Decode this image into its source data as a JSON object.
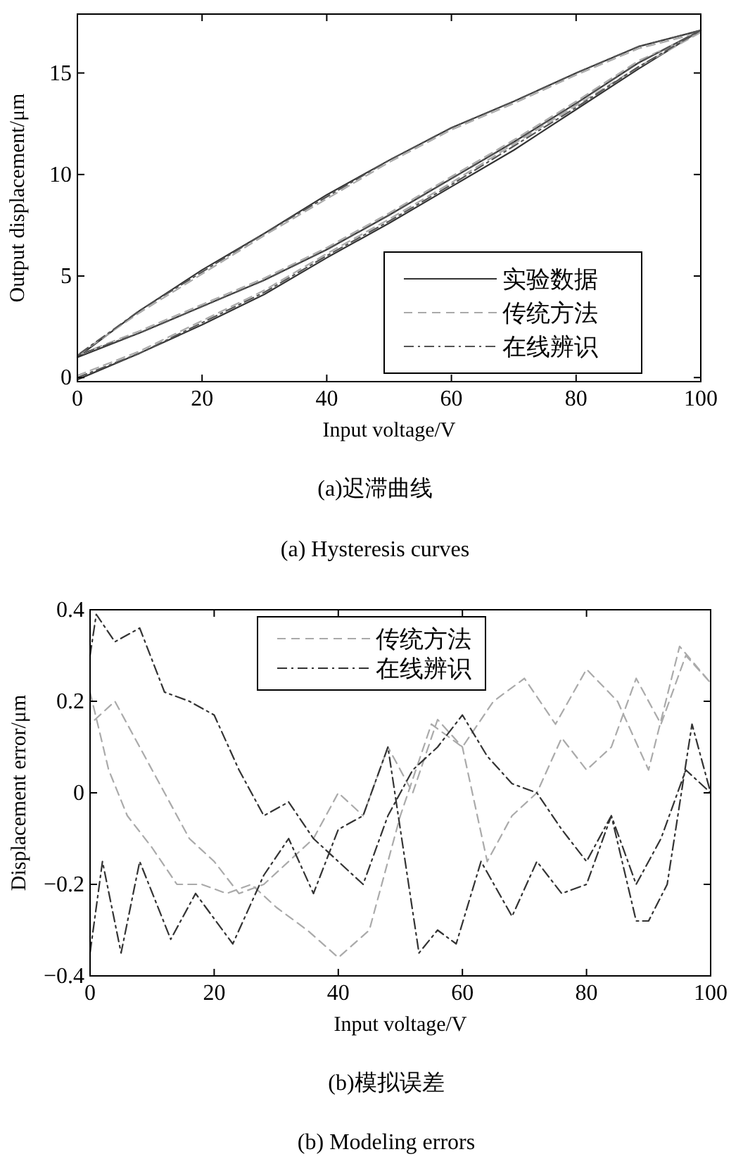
{
  "chart_data": [
    {
      "type": "line",
      "title": "(a)迟滞曲线",
      "subtitle": "(a) Hysteresis curves",
      "xlabel": "Input voltage/V",
      "ylabel": "Output displacement/μm",
      "xlim": [
        0,
        100
      ],
      "ylim": [
        -0.2,
        17.9
      ],
      "xticks": [
        0,
        20,
        40,
        60,
        80,
        100
      ],
      "yticks": [
        0,
        5,
        10,
        15
      ],
      "legend": "bottom right",
      "marker": "none",
      "series": [
        {
          "name": "实验数据",
          "color": "#333333",
          "line_style": "solid",
          "x": [
            0,
            10,
            20,
            30,
            40,
            50,
            60,
            70,
            80,
            90,
            100,
            90,
            80,
            70,
            60,
            50,
            40,
            30,
            20,
            10,
            0,
            10,
            20,
            30,
            40,
            50,
            60,
            70,
            80,
            90,
            100
          ],
          "values": [
            -0.1,
            1.2,
            2.6,
            4.1,
            5.9,
            7.6,
            9.4,
            11.2,
            13.2,
            15.2,
            17.1,
            16.3,
            15.0,
            13.6,
            12.3,
            10.7,
            9.0,
            7.1,
            5.3,
            3.3,
            1.0,
            2.2,
            3.5,
            4.8,
            6.3,
            8.0,
            9.8,
            11.6,
            13.5,
            15.5,
            17.1
          ]
        },
        {
          "name": "传统方法",
          "color": "#aaaaaa",
          "line_style": "dashed",
          "x": [
            0,
            10,
            20,
            30,
            40,
            50,
            60,
            70,
            80,
            90,
            100,
            90,
            80,
            70,
            60,
            50,
            40,
            30,
            20,
            10,
            0,
            10,
            20,
            30,
            40,
            50,
            60,
            70,
            80,
            90,
            100
          ],
          "values": [
            0.1,
            1.3,
            2.8,
            4.3,
            6.1,
            7.8,
            9.6,
            11.5,
            13.4,
            15.3,
            17.0,
            16.2,
            14.9,
            13.5,
            12.2,
            10.6,
            8.8,
            7.0,
            5.1,
            3.2,
            1.1,
            2.3,
            3.6,
            4.9,
            6.4,
            8.1,
            9.9,
            11.7,
            13.6,
            15.6,
            17.0
          ]
        },
        {
          "name": "在线辨识",
          "color": "#555555",
          "line_style": "dashdot",
          "x": [
            0,
            10,
            20,
            30,
            40,
            50,
            60,
            70,
            80,
            90,
            100,
            90,
            80,
            70,
            60,
            50,
            40,
            30,
            20,
            10,
            0,
            10,
            20,
            30,
            40,
            50,
            60,
            70,
            80,
            90,
            100
          ],
          "values": [
            0.0,
            1.2,
            2.7,
            4.2,
            6.0,
            7.7,
            9.5,
            11.4,
            13.3,
            15.3,
            17.1,
            16.3,
            15.0,
            13.6,
            12.3,
            10.7,
            8.9,
            7.1,
            5.2,
            3.3,
            1.1,
            2.2,
            3.5,
            4.8,
            6.3,
            8.0,
            9.8,
            11.6,
            13.5,
            15.5,
            17.1
          ]
        }
      ]
    },
    {
      "type": "line",
      "title": "(b)模拟误差",
      "subtitle": "(b) Modeling errors",
      "xlabel": "Input voltage/V",
      "ylabel": "Displacement error/μm",
      "xlim": [
        0,
        100
      ],
      "ylim": [
        -0.4,
        0.4
      ],
      "xticks": [
        0,
        20,
        40,
        60,
        80,
        100
      ],
      "yticks": [
        -0.4,
        -0.2,
        0,
        0.2,
        0.4
      ],
      "legend": "top",
      "marker": "none",
      "series": [
        {
          "name": "传统方法",
          "color": "#aaaaaa",
          "line_style": "dashed",
          "x": [
            0,
            3,
            6,
            10,
            14,
            18,
            22,
            26,
            30,
            35,
            40,
            45,
            50,
            55,
            60,
            65,
            70,
            75,
            80,
            85,
            90,
            95,
            100,
            96,
            92,
            88,
            84,
            80,
            76,
            72,
            68,
            64,
            60,
            56,
            52,
            48,
            44,
            40,
            36,
            32,
            28,
            24,
            20,
            16,
            12,
            8,
            4,
            0
          ],
          "values": [
            0.22,
            0.05,
            -0.05,
            -0.12,
            -0.2,
            -0.2,
            -0.22,
            -0.2,
            -0.25,
            -0.3,
            -0.36,
            -0.3,
            -0.05,
            0.15,
            0.1,
            0.2,
            0.25,
            0.15,
            0.27,
            0.2,
            0.05,
            0.32,
            0.24,
            0.3,
            0.15,
            0.25,
            0.1,
            0.05,
            0.12,
            0.0,
            -0.05,
            -0.15,
            0.1,
            0.16,
            0.0,
            0.1,
            -0.05,
            0.0,
            -0.1,
            -0.15,
            -0.2,
            -0.22,
            -0.15,
            -0.1,
            0.0,
            0.1,
            0.2,
            0.15
          ]
        },
        {
          "name": "在线辨识",
          "color": "#333333",
          "line_style": "dashdot",
          "x": [
            0,
            1,
            4,
            8,
            12,
            16,
            20,
            24,
            28,
            32,
            36,
            40,
            44,
            48,
            52,
            56,
            60,
            64,
            68,
            72,
            76,
            80,
            84,
            88,
            92,
            96,
            100,
            97,
            93,
            90,
            88,
            84,
            80,
            76,
            72,
            68,
            63,
            59,
            56,
            53,
            48,
            44,
            40,
            36,
            32,
            28,
            23,
            17,
            13,
            8,
            5,
            2,
            0
          ],
          "values": [
            0.3,
            0.39,
            0.33,
            0.36,
            0.22,
            0.2,
            0.17,
            0.05,
            -0.05,
            -0.02,
            -0.1,
            -0.15,
            -0.2,
            -0.05,
            0.05,
            0.1,
            0.17,
            0.08,
            0.02,
            0.0,
            -0.08,
            -0.15,
            -0.05,
            -0.2,
            -0.1,
            0.05,
            0.0,
            0.15,
            -0.2,
            -0.28,
            -0.28,
            -0.05,
            -0.2,
            -0.22,
            -0.15,
            -0.27,
            -0.15,
            -0.33,
            -0.3,
            -0.35,
            0.1,
            -0.05,
            -0.08,
            -0.22,
            -0.1,
            -0.18,
            -0.33,
            -0.22,
            -0.32,
            -0.15,
            -0.35,
            -0.15,
            -0.35
          ]
        }
      ]
    }
  ]
}
